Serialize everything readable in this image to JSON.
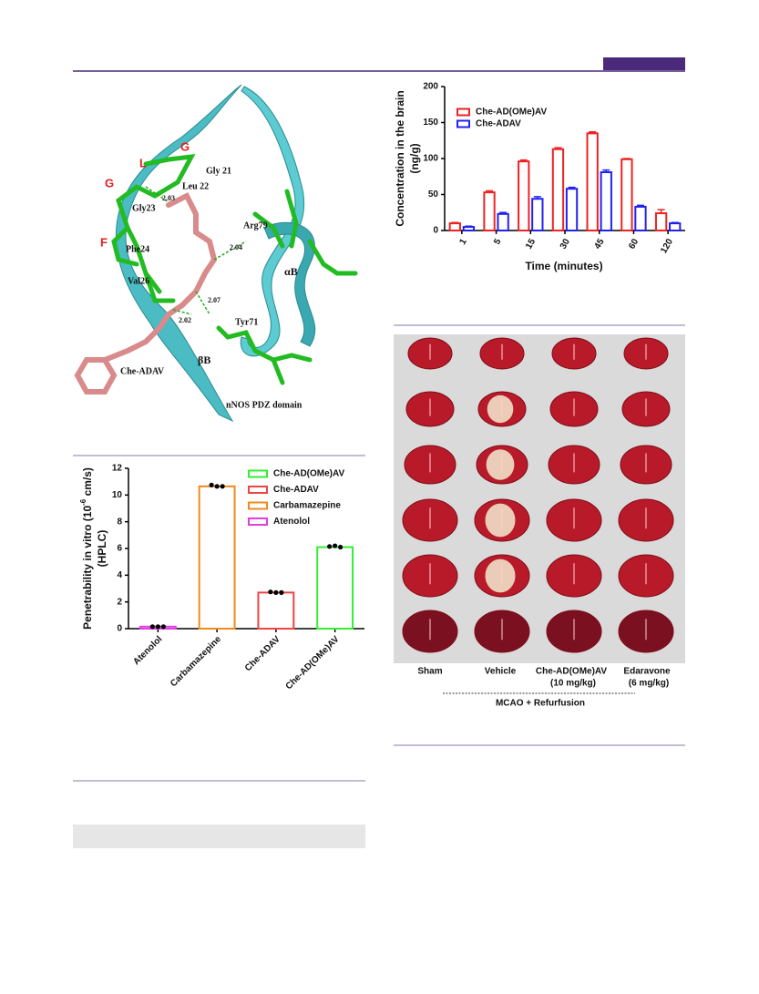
{
  "chart_data": [
    {
      "type": "bar",
      "ylabel": [
        "Concentration in the brain",
        "(ng/g)"
      ],
      "xlabel": "Time (minutes)",
      "categories": [
        "1",
        "5",
        "15",
        "30",
        "45",
        "60",
        "120"
      ],
      "series": [
        {
          "name": "Che-AD(OMe)AV",
          "color": "#ee2222",
          "values": [
            10,
            53,
            96,
            113,
            135,
            99,
            24
          ],
          "errors": [
            1,
            2,
            2,
            2,
            2,
            1,
            5
          ]
        },
        {
          "name": "Che-ADAV",
          "color": "#2222ee",
          "values": [
            5,
            23,
            44,
            58,
            81,
            33,
            10
          ],
          "errors": [
            1,
            2,
            3,
            2,
            3,
            2,
            1
          ]
        }
      ],
      "ylim": [
        0,
        200
      ],
      "yticks": [
        0,
        50,
        100,
        150,
        200
      ],
      "legend": "upper left"
    },
    {
      "type": "bar",
      "ylabel": {
        "text": "Penetrability in vitro (10",
        "superscript": "-6",
        "suffix": " cm/s)",
        "line2": "(HPLC)"
      },
      "categories": [
        "Atenolol",
        "Carbamazepine",
        "Che-ADAV",
        "Che-AD(OMe)AV"
      ],
      "series": [
        {
          "name": "Che-AD(OMe)AV",
          "color": "#33ee33",
          "values": [
            null,
            null,
            null,
            6.1
          ],
          "points": [
            null,
            null,
            null,
            [
              6.15,
              6.2,
              6.1
            ]
          ]
        },
        {
          "name": "Che-ADAV",
          "color": "#ee4444",
          "values": [
            null,
            null,
            2.7,
            null
          ],
          "points": [
            null,
            null,
            [
              2.75,
              2.7,
              2.7
            ],
            null
          ]
        },
        {
          "name": "Carbamazepine",
          "color": "#f08a1c",
          "values": [
            null,
            10.65,
            null,
            null
          ],
          "points": [
            null,
            [
              10.75,
              10.65,
              10.65
            ],
            null,
            null
          ]
        },
        {
          "name": "Atenolol",
          "color": "#e040e0",
          "values": [
            0.15,
            null,
            null,
            null
          ],
          "points": [
            [
              0.15,
              0.15,
              0.15
            ],
            null,
            null,
            null
          ]
        }
      ],
      "ylim": [
        0,
        12
      ],
      "yticks": [
        0,
        2,
        4,
        6,
        8,
        10,
        12
      ],
      "legend": "upper right"
    }
  ],
  "molecule_figure": {
    "residue_letters": [
      "G",
      "L",
      "G",
      "F"
    ],
    "residues": [
      "Gly 21",
      "Leu 22",
      "Gly23",
      "Phe24",
      "Val26",
      "Arg79",
      "Tyr71"
    ],
    "distances": [
      "2.03",
      "2.04",
      "2.07",
      "2.02"
    ],
    "helix": "αB",
    "strand": "βB",
    "ligand": "Che-ADAV",
    "domain": "nNOS PDZ domain"
  },
  "brain_figure": {
    "groups": [
      [
        "Sham"
      ],
      [
        "Vehicle"
      ],
      [
        "Che-AD(OMe)AV",
        "(10 mg/kg)"
      ],
      [
        "Edaravone",
        "(6 mg/kg)"
      ]
    ],
    "condition": "MCAO + Refurfusion"
  }
}
